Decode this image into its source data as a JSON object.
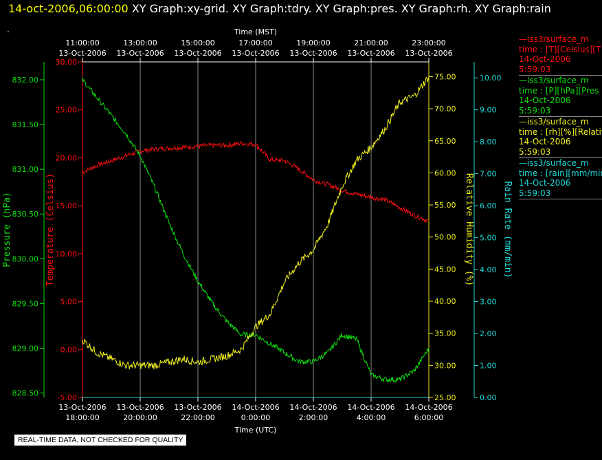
{
  "header": {
    "datetime": "14-oct-2006,06:00:00",
    "graphs": "XY Graph:xy-grid.  XY Graph:tdry.  XY Graph:pres.  XY Graph:rh.  XY Graph:rain",
    "dot": "."
  },
  "footer_note": "REAL-TIME DATA, NOT CHECKED FOR QUALITY",
  "legend": [
    {
      "name": "—iss3/surface_m",
      "var": "time : [T][Celsius][T",
      "date": "14-Oct-2006",
      "time": "5:59:03",
      "color": "#ff1010"
    },
    {
      "name": "—iss3/surface_m",
      "var": "time : [P][hPa][Pres",
      "date": "14-Oct-2006",
      "time": "5:59:03",
      "color": "#10e010"
    },
    {
      "name": "—iss3/surface_m",
      "var": "time : [rh][%][Relativ",
      "date": "14-Oct-2006",
      "time": "5:59:03",
      "color": "#f0f020"
    },
    {
      "name": "—iss3/surface_m",
      "var": "time : [rain][mm/min",
      "date": "14-Oct-2006",
      "time": "5:59:03",
      "color": "#20d8d8"
    }
  ],
  "chart_data": {
    "type": "line",
    "xlabel_top": "Time (MST)",
    "xlabel_bottom": "Time (UTC)",
    "x_range_utc_hours_from_1800": [
      0,
      12
    ],
    "top_ticks": [
      {
        "t": "11:00:00",
        "d": "13-Oct-2006"
      },
      {
        "t": "13:00:00",
        "d": "13-Oct-2006"
      },
      {
        "t": "15:00:00",
        "d": "13-Oct-2006"
      },
      {
        "t": "17:00:00",
        "d": "13-Oct-2006"
      },
      {
        "t": "19:00:00",
        "d": "13-Oct-2006"
      },
      {
        "t": "21:00:00",
        "d": "13-Oct-2006"
      },
      {
        "t": "23:00:00",
        "d": "13-Oct-2006"
      }
    ],
    "bottom_ticks": [
      {
        "d": "13-Oct-2006",
        "t": "18:00:00"
      },
      {
        "d": "13-Oct-2006",
        "t": "20:00:00"
      },
      {
        "d": "13-Oct-2006",
        "t": "22:00:00"
      },
      {
        "d": "14-Oct-2006",
        "t": "0:00:00"
      },
      {
        "d": "14-Oct-2006",
        "t": "2:00:00"
      },
      {
        "d": "14-Oct-2006",
        "t": "4:00:00"
      },
      {
        "d": "14-Oct-2006",
        "t": "6:00:00"
      }
    ],
    "axes": {
      "pressure": {
        "label": "Pressure (hPa)",
        "color": "#10e010",
        "range": [
          828.45,
          832.2
        ],
        "ticks": [
          "828.50",
          "829.00",
          "829.50",
          "830.00",
          "830.50",
          "831.00",
          "831.50",
          "832.00"
        ]
      },
      "temperature": {
        "label": "Temperature (Celsius)",
        "color": "#ff1010",
        "range": [
          -5,
          30
        ],
        "ticks": [
          "-5.00",
          "0.00",
          "5.00",
          "10.00",
          "15.00",
          "20.00",
          "25.00",
          "30.00"
        ]
      },
      "rh": {
        "label": "Relative Humidity (%)",
        "color": "#f0f020",
        "range": [
          25,
          77.3
        ],
        "ticks": [
          "25.00",
          "30.00",
          "35.00",
          "40.00",
          "45.00",
          "50.00",
          "55.00",
          "60.00",
          "65.00",
          "70.00",
          "75.00"
        ]
      },
      "rain": {
        "label": "Rain Rate (mm/min)",
        "color": "#20d8d8",
        "range": [
          0,
          10.5
        ],
        "ticks": [
          "0.00",
          "1.00",
          "2.00",
          "3.00",
          "4.00",
          "5.00",
          "6.00",
          "7.00",
          "8.00",
          "9.00",
          "10.00"
        ]
      }
    },
    "series": [
      {
        "name": "Temperature",
        "axis": "temperature",
        "x": [
          0,
          0.5,
          1,
          1.5,
          2,
          2.5,
          3,
          3.5,
          4,
          4.5,
          5,
          5.5,
          6,
          6.5,
          7,
          7.5,
          8,
          8.5,
          9,
          9.5,
          10,
          10.5,
          11,
          11.5,
          12
        ],
        "values": [
          18.5,
          19.2,
          19.7,
          20.2,
          20.7,
          20.9,
          21.0,
          21.1,
          21.2,
          21.3,
          21.3,
          21.5,
          21.4,
          19.8,
          19.7,
          18.8,
          17.7,
          17.2,
          16.6,
          16.2,
          15.9,
          15.6,
          14.8,
          14.0,
          13.4
        ]
      },
      {
        "name": "Pressure",
        "axis": "pressure",
        "x": [
          0,
          0.5,
          1,
          1.5,
          2,
          2.5,
          3,
          3.5,
          4,
          4.5,
          5,
          5.5,
          6,
          6.5,
          7,
          7.5,
          8,
          8.5,
          9,
          9.5,
          10,
          10.5,
          11,
          11.5,
          12
        ],
        "values": [
          832.0,
          831.8,
          831.6,
          831.4,
          831.15,
          830.8,
          830.4,
          830.05,
          829.75,
          829.5,
          829.3,
          829.15,
          829.15,
          829.05,
          828.95,
          828.85,
          828.85,
          828.95,
          829.15,
          829.1,
          828.7,
          828.65,
          828.65,
          828.75,
          829.0
        ]
      },
      {
        "name": "Relative Humidity",
        "axis": "rh",
        "x": [
          0,
          0.5,
          1,
          1.5,
          2,
          2.5,
          3,
          3.5,
          4,
          4.5,
          5,
          5.5,
          6,
          6.5,
          7,
          7.5,
          8,
          8.5,
          9,
          9.5,
          10,
          10.5,
          11,
          11.5,
          12
        ],
        "values": [
          34,
          32,
          31,
          30,
          30,
          30,
          30.5,
          31,
          30.5,
          31,
          31.5,
          32.5,
          36,
          38,
          43,
          46,
          48,
          52,
          58,
          62,
          64,
          67,
          71,
          72,
          75
        ]
      },
      {
        "name": "Rain Rate",
        "axis": "rain",
        "x": [
          0,
          12
        ],
        "values": [
          0,
          0
        ]
      }
    ]
  }
}
